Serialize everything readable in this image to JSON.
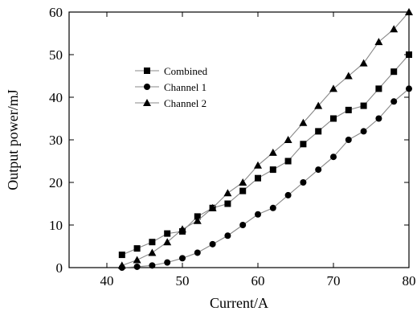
{
  "chart_data": {
    "type": "line",
    "xlabel": "Current/A",
    "ylabel": "Output power/mJ",
    "xlim": [
      35,
      80
    ],
    "ylim": [
      0,
      60
    ],
    "xticks": [
      40,
      50,
      60,
      70,
      80
    ],
    "yticks": [
      0,
      10,
      20,
      30,
      40,
      50,
      60
    ],
    "grid": false,
    "legend_position": "upper-left",
    "series": [
      {
        "name": "Combined",
        "marker": "square",
        "color": "#000000",
        "line_color": "#888888",
        "x": [
          42,
          44,
          46,
          48,
          50,
          52,
          54,
          56,
          58,
          60,
          62,
          64,
          66,
          68,
          70,
          72,
          74,
          76,
          78,
          80
        ],
        "y": [
          3,
          4.5,
          6,
          8,
          8.5,
          12,
          14,
          15,
          18,
          21,
          23,
          25,
          29,
          32,
          35,
          37,
          38,
          42,
          46,
          50
        ]
      },
      {
        "name": "Channel 1",
        "marker": "circle",
        "color": "#000000",
        "line_color": "#888888",
        "x": [
          42,
          44,
          46,
          48,
          50,
          52,
          54,
          56,
          58,
          60,
          62,
          64,
          66,
          68,
          70,
          72,
          74,
          76,
          78,
          80
        ],
        "y": [
          0,
          0.2,
          0.5,
          1.2,
          2.2,
          3.5,
          5.5,
          7.5,
          10,
          12.5,
          14,
          17,
          20,
          23,
          26,
          30,
          32,
          35,
          39,
          42
        ]
      },
      {
        "name": "Channel 2",
        "marker": "triangle",
        "color": "#000000",
        "line_color": "#888888",
        "x": [
          42,
          44,
          46,
          48,
          50,
          52,
          54,
          56,
          58,
          60,
          62,
          64,
          66,
          68,
          70,
          72,
          74,
          76,
          78,
          80
        ],
        "y": [
          0.5,
          1.8,
          3.5,
          6,
          9,
          11,
          14,
          17.5,
          20,
          24,
          27,
          30,
          34,
          38,
          42,
          45,
          48,
          53,
          56,
          60
        ]
      }
    ]
  }
}
